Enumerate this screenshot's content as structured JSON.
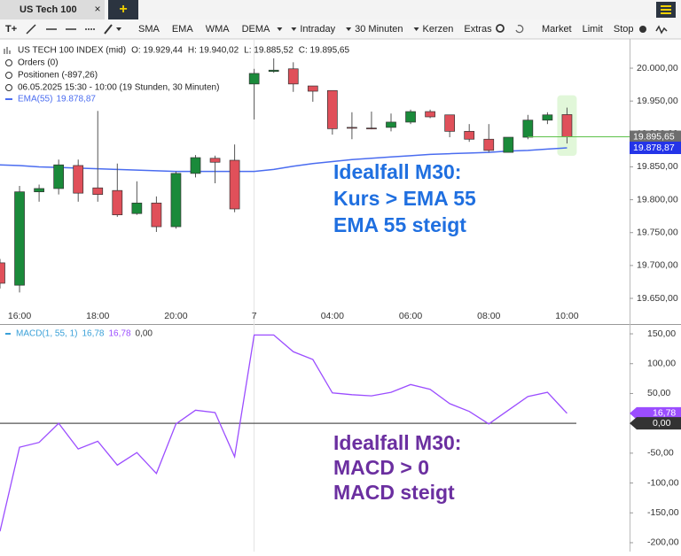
{
  "tab": {
    "title": "US Tech 100",
    "add": "+"
  },
  "toolbar": {
    "text_tool": "T+",
    "indicators": [
      "SMA",
      "EMA",
      "WMA",
      "DEMA"
    ],
    "interval_type": "Intraday",
    "interval": "30 Minuten",
    "style": "Kerzen",
    "extras": "Extras",
    "orders": [
      "Market",
      "Limit",
      "Stop"
    ]
  },
  "info": {
    "instrument": "US TECH 100 INDEX (mid)",
    "open": "O: 19.929,44",
    "high": "H: 19.940,02",
    "low": "L: 19.885,52",
    "close": "C: 19.895,65",
    "orders": "Orders (0)",
    "positions": "Positionen (-897,26)",
    "range": "06.05.2025 15:30 - 10:00  (19 Stunden, 30 Minuten)"
  },
  "chart_data": [
    {
      "type": "candlestick",
      "categories": [
        null,
        "16:00",
        null,
        null,
        null,
        "18:00",
        null,
        null,
        null,
        "20:00",
        null,
        null,
        null,
        "7",
        null,
        null,
        null,
        "04:00",
        null,
        null,
        null,
        "06:00",
        null,
        null,
        null,
        "08:00",
        null,
        null,
        null,
        "10:00"
      ],
      "open": [
        19704,
        19670,
        19812,
        19817,
        19852,
        19818,
        19814,
        19779,
        19795,
        19759,
        19840,
        19863,
        19860,
        19976,
        19995,
        19999,
        19973,
        19966,
        19910,
        19909,
        19910,
        19918,
        19934,
        19929,
        19904,
        19892,
        19872,
        19895,
        19921,
        19929.44
      ],
      "high": [
        19710,
        19821,
        19823,
        19861,
        19861,
        19935,
        19855,
        19828,
        19805,
        19843,
        19868,
        19867,
        19884,
        19999,
        20015,
        20009,
        19973,
        19966,
        19933,
        19934,
        19931,
        19937,
        19937,
        19929,
        19915,
        19915,
        19895,
        19929,
        19933,
        19940.02
      ],
      "low": [
        19665,
        19659,
        19797,
        19808,
        19797,
        19797,
        19774,
        19777,
        19751,
        19756,
        19834,
        19825,
        19781,
        19922,
        19993,
        19964,
        19949,
        19899,
        19892,
        19907,
        19904,
        19915,
        19924,
        19895,
        19888,
        19872,
        19872,
        19892,
        19915,
        19885.52
      ],
      "close": [
        19673,
        19812,
        19817,
        19853,
        19810,
        19808,
        19777,
        19795,
        19759,
        19840,
        19864,
        19857,
        19786,
        19992,
        19997,
        19976,
        19965,
        19908,
        19909,
        19908,
        19918,
        19934,
        19926,
        19904,
        19892,
        19875,
        19895,
        19921,
        19929,
        19895.65
      ],
      "up_color": "#1a8a3a",
      "down_color": "#e0505a",
      "series": [
        {
          "name": "EMA(55)",
          "last_label": "19.878,87",
          "color": "#4a6cf0",
          "values": [
            19853,
            19852,
            19850,
            19849,
            19848,
            19847,
            19846,
            19845,
            19844,
            19843,
            19843,
            19843,
            19843,
            19843,
            19846,
            19851,
            19855,
            19858,
            19861,
            19863,
            19865,
            19867,
            19869,
            19870,
            19871,
            19872,
            19874,
            19875,
            19877,
            19878.87
          ]
        }
      ],
      "price_labels": [
        {
          "value": 19895.65,
          "label": "19.895,65",
          "color": "#6e6e6e"
        },
        {
          "value": 19878.87,
          "label": "19.878,87",
          "color": "#2434e8"
        }
      ],
      "ylim": [
        19620,
        20040
      ],
      "yticks": [
        {
          "value": 20000,
          "label": "20.000,00"
        },
        {
          "value": 19950,
          "label": "19.950,00"
        },
        {
          "value": 19900,
          "label": "19.900,00"
        },
        {
          "value": 19850,
          "label": "19.850,00"
        },
        {
          "value": 19800,
          "label": "19.800,00"
        },
        {
          "value": 19750,
          "label": "19.750,00"
        },
        {
          "value": 19700,
          "label": "19.700,00"
        },
        {
          "value": 19650,
          "label": "19.650,00"
        }
      ],
      "annotation": {
        "lines": [
          "Idealfall M30:",
          "Kurs > EMA 55",
          "EMA 55 steigt"
        ],
        "color": "#1f6fe0"
      }
    },
    {
      "type": "line",
      "series": [
        {
          "name": "MACD(1, 55, 1)",
          "color": "#9b4dff",
          "values": [
            -181,
            -40,
            -32,
            0,
            -43,
            -30,
            -70,
            -49,
            -84,
            -1,
            22,
            18,
            -56,
            148,
            148,
            120,
            107,
            51,
            48,
            46,
            52,
            65,
            57,
            33,
            20,
            -1,
            22,
            45,
            52,
            16.78
          ]
        }
      ],
      "legend_values": [
        "16,78",
        "16,78",
        "0,00"
      ],
      "price_labels": [
        {
          "value": 16.78,
          "label": "16,78",
          "color": "#9b4dff"
        },
        {
          "value": 0,
          "label": "0,00",
          "color": "#333333"
        }
      ],
      "ylim": [
        -210,
        160
      ],
      "yticks": [
        {
          "value": 150,
          "label": "150,00"
        },
        {
          "value": 100,
          "label": "100,00"
        },
        {
          "value": 50,
          "label": "50,00"
        },
        {
          "value": -50,
          "label": "-50,00"
        },
        {
          "value": -100,
          "label": "-100,00"
        },
        {
          "value": -150,
          "label": "-150,00"
        },
        {
          "value": -200,
          "label": "-200,00"
        }
      ],
      "annotation": {
        "lines": [
          "Idealfall M30:",
          "MACD > 0",
          "MACD steigt"
        ],
        "color": "#6b2fa0"
      }
    }
  ]
}
